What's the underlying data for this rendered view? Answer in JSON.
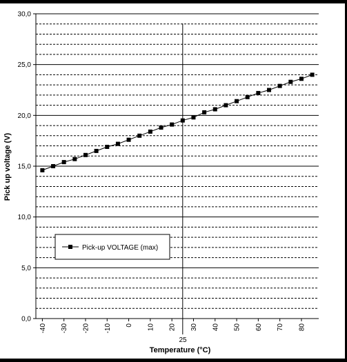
{
  "chart_data": {
    "type": "line",
    "xlabel": "Temperature (°C)",
    "ylabel": "Pick up voltage (V)",
    "xlim": [
      -43,
      88
    ],
    "ylim": [
      0,
      30
    ],
    "x_ticks": [
      -40,
      -30,
      -20,
      -10,
      0,
      10,
      20,
      30,
      40,
      50,
      60,
      70,
      80
    ],
    "y_ticks": [
      {
        "value": 0,
        "label": "0,0"
      },
      {
        "value": 5,
        "label": "5,0"
      },
      {
        "value": 10,
        "label": "10,0"
      },
      {
        "value": 15,
        "label": "15,0"
      },
      {
        "value": 20,
        "label": "20,0"
      },
      {
        "value": 25,
        "label": "25,0"
      },
      {
        "value": 30,
        "label": "30,0"
      }
    ],
    "minor_grid_step": 1,
    "major_grid_step": 5,
    "marker_line": {
      "x": 25,
      "label": "25"
    },
    "legend_position": "lower-left",
    "series": [
      {
        "name": "Pick-up VOLTAGE (max)",
        "color": "#000000",
        "marker": "square",
        "x": [
          -40,
          -35,
          -30,
          -25,
          -20,
          -15,
          -10,
          -5,
          0,
          5,
          10,
          15,
          20,
          25,
          30,
          35,
          40,
          45,
          50,
          55,
          60,
          65,
          70,
          75,
          80,
          85
        ],
        "y": [
          14.6,
          15.0,
          15.4,
          15.7,
          16.1,
          16.5,
          16.9,
          17.2,
          17.6,
          18.0,
          18.4,
          18.8,
          19.1,
          19.5,
          19.8,
          20.3,
          20.6,
          21.0,
          21.4,
          21.8,
          22.2,
          22.5,
          22.9,
          23.3,
          23.6,
          24.0
        ]
      }
    ]
  }
}
